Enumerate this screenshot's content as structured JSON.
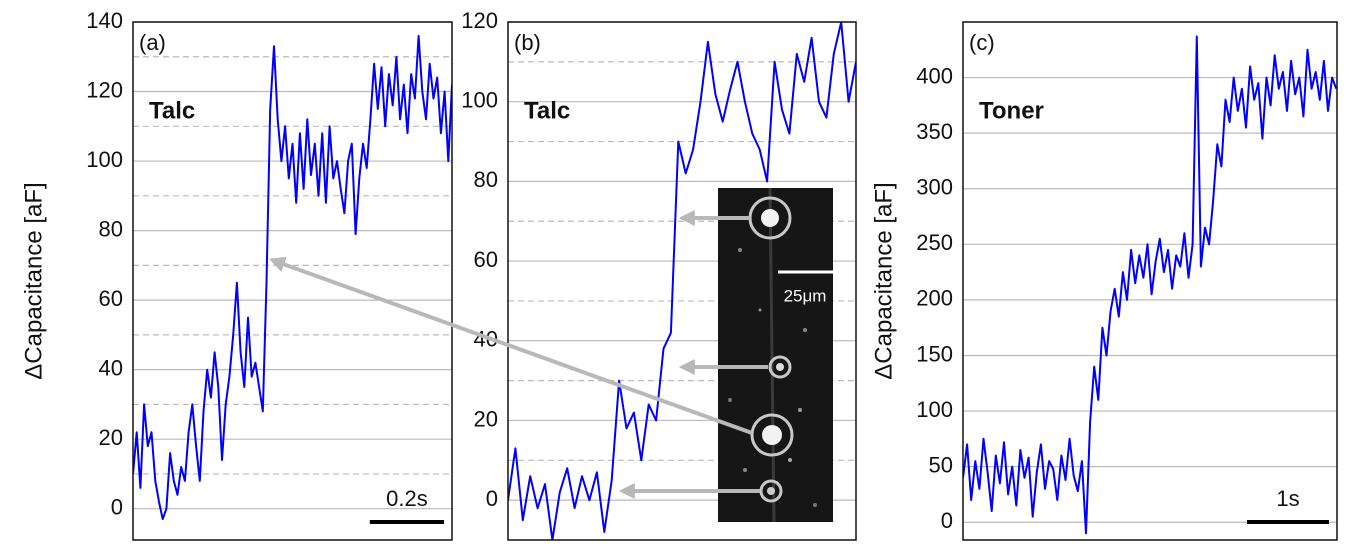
{
  "chart_data": [
    {
      "type": "line",
      "label": "(a)",
      "annotation": "Talc",
      "ylabel": "ΔCapacitance [aF]",
      "color": "#0000ff",
      "xlim": [
        0,
        0.86
      ],
      "ylim": [
        -9,
        140
      ],
      "yticks": [
        0,
        20,
        40,
        60,
        80,
        100,
        120,
        140
      ],
      "minor_yticks": [
        10,
        30,
        50,
        70,
        90,
        110,
        130
      ],
      "grid": true,
      "scalebar": {
        "value": 0.2,
        "label": "0.2s"
      },
      "x": [
        0,
        0.01,
        0.02,
        0.03,
        0.04,
        0.05,
        0.06,
        0.07,
        0.08,
        0.09,
        0.1,
        0.11,
        0.12,
        0.13,
        0.14,
        0.15,
        0.16,
        0.17,
        0.18,
        0.19,
        0.2,
        0.21,
        0.22,
        0.23,
        0.24,
        0.25,
        0.26,
        0.27,
        0.28,
        0.29,
        0.3,
        0.31,
        0.32,
        0.33,
        0.34,
        0.35,
        0.36,
        0.37,
        0.38,
        0.39,
        0.4,
        0.41,
        0.42,
        0.43,
        0.44,
        0.45,
        0.46,
        0.47,
        0.48,
        0.49,
        0.5,
        0.51,
        0.52,
        0.53,
        0.54,
        0.55,
        0.56,
        0.57,
        0.58,
        0.59,
        0.6,
        0.61,
        0.62,
        0.63,
        0.64,
        0.65,
        0.66,
        0.67,
        0.68,
        0.69,
        0.7,
        0.71,
        0.72,
        0.73,
        0.74,
        0.75,
        0.76,
        0.77,
        0.78,
        0.79,
        0.8,
        0.81,
        0.82,
        0.83,
        0.84,
        0.85,
        0.86
      ],
      "values": [
        10,
        22,
        6,
        30,
        18,
        22,
        8,
        2,
        -3,
        0,
        16,
        8,
        4,
        12,
        8,
        22,
        30,
        18,
        8,
        28,
        40,
        32,
        45,
        35,
        14,
        30,
        38,
        50,
        65,
        45,
        35,
        55,
        38,
        42,
        35,
        28,
        65,
        115,
        133,
        112,
        100,
        110,
        95,
        105,
        88,
        108,
        92,
        112,
        96,
        105,
        90,
        108,
        88,
        110,
        95,
        100,
        92,
        85,
        100,
        105,
        79,
        95,
        105,
        98,
        112,
        128,
        115,
        127,
        110,
        125,
        116,
        130,
        112,
        122,
        108,
        125,
        118,
        136,
        120,
        112,
        128,
        118,
        124,
        108,
        120,
        100,
        122
      ]
    },
    {
      "type": "line",
      "label": "(b)",
      "annotation": "Talc",
      "inset_label": "25μm",
      "color": "#0000ff",
      "xlim": [
        0,
        0.94
      ],
      "ylim": [
        -10,
        120
      ],
      "yticks": [
        0,
        20,
        40,
        60,
        80,
        100,
        120
      ],
      "minor_yticks": [
        10,
        30,
        50,
        70,
        90,
        110
      ],
      "grid": true,
      "x": [
        0,
        0.02,
        0.04,
        0.06,
        0.08,
        0.1,
        0.12,
        0.14,
        0.16,
        0.18,
        0.2,
        0.22,
        0.24,
        0.26,
        0.28,
        0.3,
        0.32,
        0.34,
        0.36,
        0.38,
        0.4,
        0.42,
        0.44,
        0.46,
        0.48,
        0.5,
        0.52,
        0.54,
        0.56,
        0.58,
        0.6,
        0.62,
        0.64,
        0.66,
        0.68,
        0.7,
        0.72,
        0.74,
        0.76,
        0.78,
        0.8,
        0.82,
        0.84,
        0.86,
        0.88,
        0.9,
        0.92,
        0.94
      ],
      "values": [
        0,
        13,
        -5,
        6,
        -2,
        4,
        -10,
        2,
        8,
        -2,
        6,
        0,
        7,
        -8,
        5,
        30,
        18,
        22,
        10,
        24,
        20,
        38,
        42,
        90,
        82,
        88,
        100,
        115,
        102,
        95,
        103,
        110,
        100,
        92,
        88,
        80,
        110,
        98,
        92,
        112,
        105,
        116,
        100,
        96,
        112,
        120,
        100,
        110
      ]
    },
    {
      "type": "line",
      "label": "(c)",
      "annotation": "Toner",
      "ylabel": "ΔCapacitance [aF]",
      "color": "#0000ff",
      "xlim": [
        0,
        4.56
      ],
      "ylim": [
        -16,
        450
      ],
      "yticks": [
        0,
        50,
        100,
        150,
        200,
        250,
        300,
        350,
        400
      ],
      "grid": true,
      "scalebar": {
        "value": 1,
        "label": "1s"
      },
      "x": [
        0,
        0.05,
        0.1,
        0.15,
        0.2,
        0.25,
        0.3,
        0.35,
        0.4,
        0.45,
        0.5,
        0.55,
        0.6,
        0.65,
        0.7,
        0.75,
        0.8,
        0.85,
        0.9,
        0.95,
        1,
        1.05,
        1.1,
        1.15,
        1.2,
        1.25,
        1.3,
        1.35,
        1.4,
        1.45,
        1.5,
        1.55,
        1.6,
        1.65,
        1.7,
        1.75,
        1.8,
        1.85,
        1.9,
        1.95,
        2,
        2.05,
        2.1,
        2.15,
        2.2,
        2.25,
        2.3,
        2.35,
        2.4,
        2.45,
        2.5,
        2.55,
        2.6,
        2.65,
        2.7,
        2.75,
        2.8,
        2.85,
        2.9,
        2.95,
        3,
        3.05,
        3.1,
        3.15,
        3.2,
        3.25,
        3.3,
        3.35,
        3.4,
        3.45,
        3.5,
        3.55,
        3.6,
        3.65,
        3.7,
        3.75,
        3.8,
        3.85,
        3.9,
        3.95,
        4,
        4.05,
        4.1,
        4.15,
        4.2,
        4.25,
        4.3,
        4.35,
        4.4,
        4.45,
        4.5,
        4.55
      ],
      "values": [
        40,
        70,
        20,
        55,
        30,
        75,
        45,
        10,
        60,
        35,
        72,
        25,
        50,
        15,
        65,
        40,
        58,
        5,
        45,
        70,
        30,
        55,
        48,
        20,
        60,
        38,
        75,
        42,
        28,
        55,
        -10,
        90,
        140,
        110,
        175,
        150,
        190,
        210,
        185,
        225,
        200,
        245,
        215,
        240,
        220,
        250,
        205,
        235,
        255,
        225,
        245,
        210,
        240,
        230,
        260,
        220,
        250,
        437,
        230,
        265,
        250,
        290,
        340,
        320,
        380,
        360,
        400,
        370,
        390,
        355,
        410,
        380,
        395,
        345,
        400,
        375,
        420,
        390,
        405,
        370,
        415,
        385,
        400,
        365,
        425,
        390,
        405,
        380,
        415,
        370,
        400,
        390
      ]
    }
  ]
}
